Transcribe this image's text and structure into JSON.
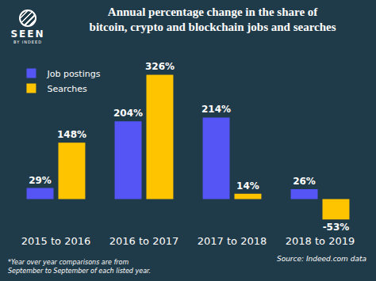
{
  "logo": {
    "text": "SEEN",
    "subtext": "BY INDEED"
  },
  "chart_data": {
    "type": "bar",
    "title": [
      "Annual percentage change in the share of",
      "bitcoin, crypto and blockchain jobs and searches"
    ],
    "categories": [
      "2015 to 2016",
      "2016 to 2017",
      "2017 to 2018",
      "2018 to 2019"
    ],
    "series": [
      {
        "name": "Job postings",
        "color": "#5555f5",
        "values": [
          29,
          204,
          214,
          26
        ],
        "value_labels": [
          "29%",
          "204%",
          "214%",
          "26%"
        ]
      },
      {
        "name": "Searches",
        "color": "#ffc400",
        "values": [
          148,
          326,
          14,
          -53
        ],
        "value_labels": [
          "148%",
          "326%",
          "14%",
          "-53%"
        ]
      }
    ],
    "ylim": [
      -90,
      360
    ],
    "grid": false,
    "legend": "top left",
    "data_labels": true,
    "tick_labels": "x",
    "footnote": [
      "*Year over year comparisons are from",
      "September to September of each listed year."
    ],
    "source": "Source: Indeed.com data"
  }
}
